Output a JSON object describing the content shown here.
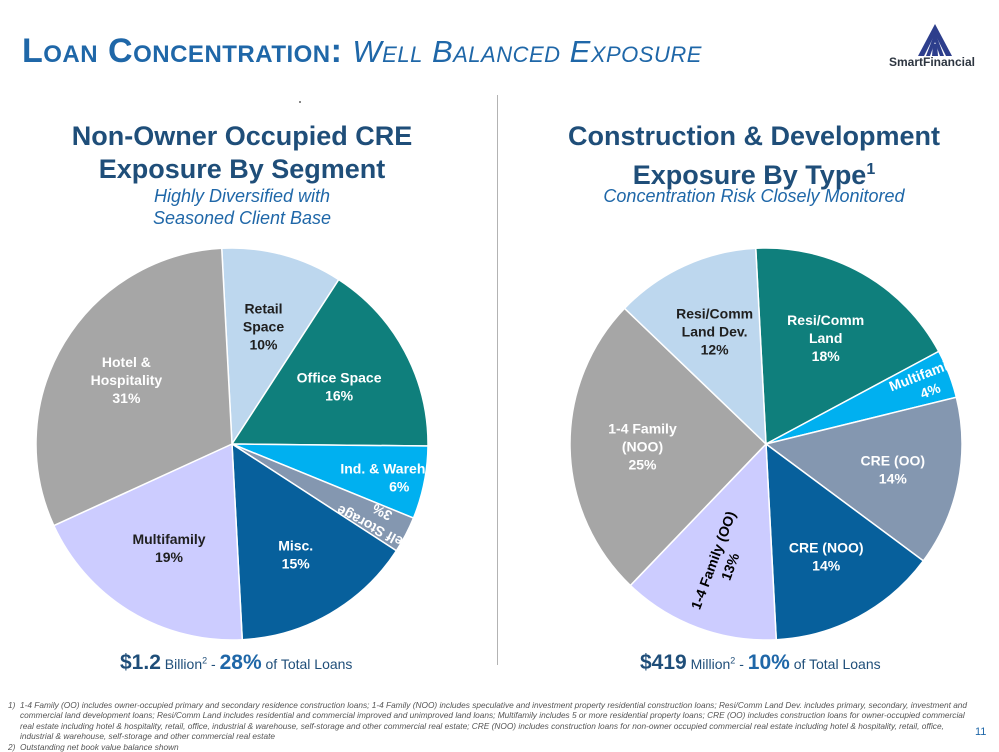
{
  "header": {
    "title_main": "Loan Concentration:",
    "title_sub": "Well Balanced Exposure",
    "logo_text": "SmartFinancial"
  },
  "left": {
    "title_line1": "Non-Owner Occupied CRE",
    "title_line2": "Exposure By Segment",
    "subtitle_line1": "Highly Diversified with",
    "subtitle_line2": "Seasoned Client Base",
    "total_value": "$1.2",
    "total_unit": "Billion",
    "total_sup": "2",
    "total_sep": "-",
    "total_pct": "28%",
    "total_suffix": "of Total Loans"
  },
  "right": {
    "title_line1": "Construction & Development",
    "title_line2": "Exposure By Type",
    "title_sup": "1",
    "subtitle": "Concentration Risk Closely Monitored",
    "total_value": "$419",
    "total_unit": "Million",
    "total_sup": "2",
    "total_sep": "-",
    "total_pct": "10%",
    "total_suffix": "of Total Loans"
  },
  "chart_data": [
    {
      "type": "pie",
      "title": "Non-Owner Occupied CRE Exposure By Segment",
      "slices": [
        {
          "label": [
            "Retail",
            "Space"
          ],
          "value": 10,
          "value_label": "10%",
          "color": "#bdd7ee",
          "text_color": "#1f1f1f"
        },
        {
          "label": [
            "Office Space"
          ],
          "value": 16,
          "value_label": "16%",
          "color": "#0f7f7c",
          "text_color": "#ffffff"
        },
        {
          "label": [
            "Ind. & Warehouse"
          ],
          "value": 6,
          "value_label": "6%",
          "color": "#00b0f0",
          "text_color": "#ffffff"
        },
        {
          "label": [
            "Self Storage"
          ],
          "value": 3,
          "value_label": "3%",
          "color": "#8497b0",
          "text_color": "#ffffff",
          "rotated": true
        },
        {
          "label": [
            "Misc."
          ],
          "value": 15,
          "value_label": "15%",
          "color": "#07609c",
          "text_color": "#ffffff"
        },
        {
          "label": [
            "Multifamily"
          ],
          "value": 19,
          "value_label": "19%",
          "color": "#ccccff",
          "text_color": "#1f1f1f"
        },
        {
          "label": [
            "Hotel &",
            "Hospitality"
          ],
          "value": 31,
          "value_label": "31%",
          "color": "#a6a6a6",
          "text_color": "#ffffff"
        }
      ]
    },
    {
      "type": "pie",
      "title": "Construction & Development Exposure By Type",
      "slices": [
        {
          "label": [
            "Resi/Comm",
            "Land"
          ],
          "value": 18,
          "value_label": "18%",
          "color": "#0f7f7c",
          "text_color": "#ffffff"
        },
        {
          "label": [
            "Multifamily"
          ],
          "value": 4,
          "value_label": "4%",
          "color": "#00b0f0",
          "text_color": "#ffffff",
          "rotated": true
        },
        {
          "label": [
            "CRE (OO)"
          ],
          "value": 14,
          "value_label": "14%",
          "color": "#8497b0",
          "text_color": "#ffffff"
        },
        {
          "label": [
            "CRE (NOO)"
          ],
          "value": 14,
          "value_label": "14%",
          "color": "#07609c",
          "text_color": "#ffffff"
        },
        {
          "label": [
            "1-4 Family (OO)"
          ],
          "value": 13,
          "value_label": "13%",
          "color": "#ccccff",
          "text_color": "#000000",
          "rotated": true
        },
        {
          "label": [
            "1-4 Family",
            "(NOO)"
          ],
          "value": 25,
          "value_label": "25%",
          "color": "#a6a6a6",
          "text_color": "#ffffff"
        },
        {
          "label": [
            "Resi/Comm",
            "Land Dev."
          ],
          "value": 12,
          "value_label": "12%",
          "color": "#bdd7ee",
          "text_color": "#1f1f1f"
        }
      ]
    }
  ],
  "footnotes": [
    {
      "num": "1)",
      "text": "1-4 Family (OO) includes owner-occupied primary and secondary residence construction loans; 1-4 Family (NOO) includes speculative and investment property residential construction loans; Resi/Comm Land Dev. includes primary, secondary, investment and commercial land development loans; Resi/Comm Land includes residential and commercial improved and unimproved land loans; Multifamily includes 5 or more residential property loans; CRE (OO) includes construction loans for owner-occupied commercial real estate including hotel & hospitality, retail, office, industrial & warehouse, self-storage and other commercial real estate; CRE (NOO) includes construction loans for non-owner occupied commercial real estate including hotel & hospitality, retail, office, industrial & warehouse, self-storage and other commercial real estate"
    },
    {
      "num": "2)",
      "text": "Outstanding net book value balance shown"
    }
  ],
  "page_number": "11"
}
